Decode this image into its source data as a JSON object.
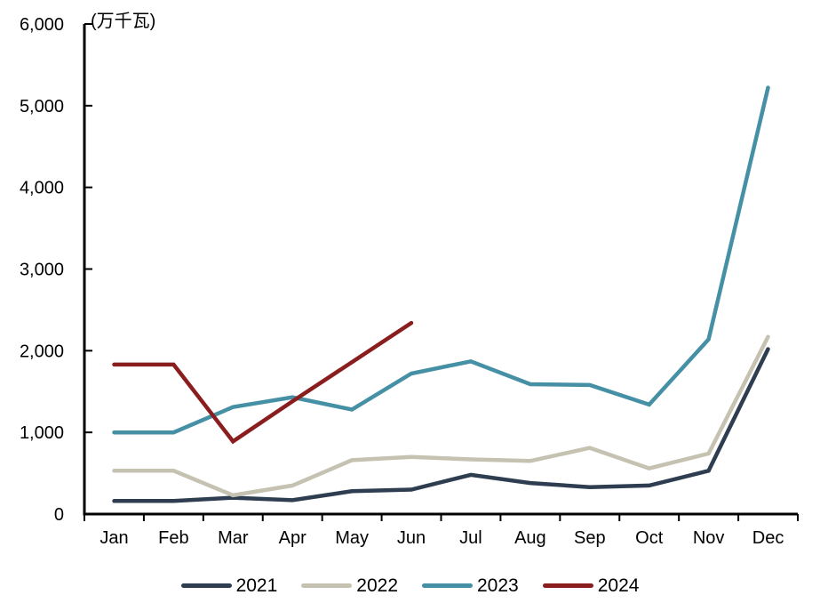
{
  "chart_data": {
    "type": "line",
    "title": "",
    "unit_label": "(万千瓦)",
    "xlabel": "",
    "ylabel": "",
    "categories": [
      "Jan",
      "Feb",
      "Mar",
      "Apr",
      "May",
      "Jun",
      "Jul",
      "Aug",
      "Sep",
      "Oct",
      "Nov",
      "Dec"
    ],
    "series": [
      {
        "name": "2021",
        "color": "#2E3D50",
        "values": [
          160,
          160,
          200,
          170,
          280,
          300,
          480,
          380,
          330,
          350,
          530,
          2020
        ]
      },
      {
        "name": "2022",
        "color": "#C5C2B2",
        "values": [
          530,
          530,
          230,
          350,
          660,
          700,
          670,
          650,
          810,
          560,
          740,
          2170
        ]
      },
      {
        "name": "2023",
        "color": "#4590A4",
        "values": [
          1000,
          1000,
          1310,
          1430,
          1280,
          1720,
          1870,
          1590,
          1580,
          1340,
          2140,
          5220
        ]
      },
      {
        "name": "2024",
        "color": "#8A1E1E",
        "values": [
          1830,
          1830,
          890,
          1380,
          1860,
          2340
        ]
      }
    ],
    "ylim": [
      0,
      6000
    ],
    "yticks": [
      0,
      1000,
      2000,
      3000,
      4000,
      5000,
      6000
    ],
    "ytick_labels": [
      "0",
      "1,000",
      "2,000",
      "3,000",
      "4,000",
      "5,000",
      "6,000"
    ],
    "grid": false,
    "legend_position": "bottom",
    "axis_color": "#000000",
    "text_color": "#000000"
  }
}
